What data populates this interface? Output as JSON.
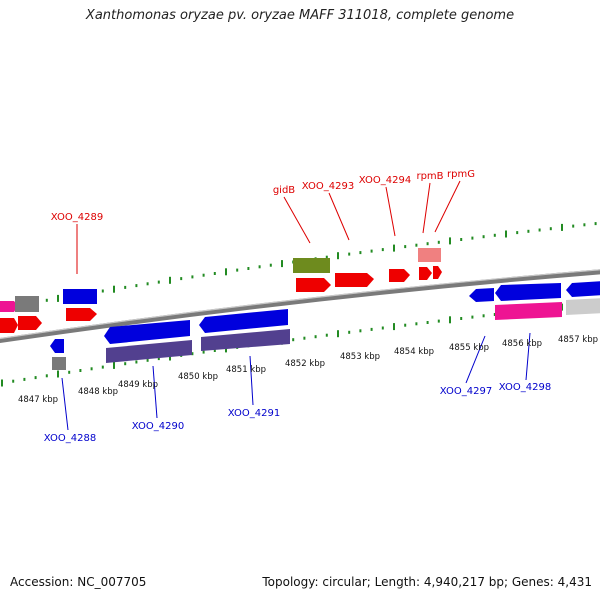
{
  "title": "Xanthomonas oryzae pv. oryzae MAFF 311018, complete genome",
  "footer": {
    "accession": "Accession: NC_007705",
    "summary": "Topology: circular; Length: 4,940,217 bp; Genes: 4,431"
  },
  "colors": {
    "forward_gene": "#ee0000",
    "reverse_gene": "#0000dd",
    "reverse_protein": "#52408f",
    "rRNA_like": "#ee1493",
    "gray_gene": "#777777",
    "light_gray_gene": "#cccccc",
    "gidB": "#6e8b1e",
    "pink_gene": "#f08080",
    "tick": "#228b22",
    "backbone": "#7a7a7a",
    "label_forward": "#dd0000",
    "label_reverse": "#0000cc"
  },
  "scale": {
    "unit": "kbp",
    "ticks": [
      4847,
      4848,
      4849,
      4850,
      4851,
      4852,
      4853,
      4854,
      4855,
      4856,
      4857
    ]
  },
  "gene_labels": {
    "forward": [
      "XOO_4289",
      "gidB",
      "XOO_4293",
      "XOO_4294",
      "rpmB",
      "rpmG"
    ],
    "reverse": [
      "XOO_4288",
      "XOO_4290",
      "XOO_4291",
      "XOO_4297",
      "XOO_4298"
    ]
  }
}
